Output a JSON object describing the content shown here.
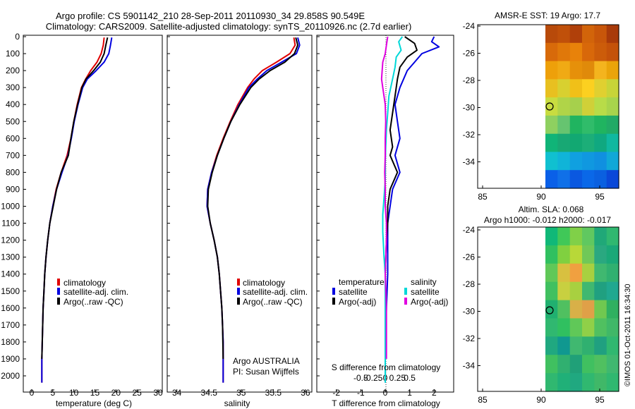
{
  "header": {
    "title_line1": "Argo profile: CS 5901142_210 28-Sep-2011 20110930_34 29.858S 90.549E",
    "title_line2": "Climatology: CARS2009. Satellite-adjusted climatology: synTS_20110926.nc (2.7d earlier)"
  },
  "colors": {
    "climatology": "#e00000",
    "satellite": "#0000e0",
    "argo": "#000000",
    "sat_sal": "#00e0e0",
    "argo_sal": "#e000e0"
  },
  "chart_data": [
    {
      "id": "temperature",
      "type": "line",
      "xlabel": "temperature (deg C)",
      "ylabel": "",
      "xlim": [
        -2,
        31
      ],
      "ylim": [
        2100,
        0
      ],
      "xticks": [
        0,
        5,
        10,
        15,
        20,
        25,
        30
      ],
      "yticks": [
        0,
        100,
        200,
        300,
        400,
        500,
        600,
        700,
        800,
        900,
        1000,
        1100,
        1200,
        1300,
        1400,
        1500,
        1600,
        1700,
        1800,
        1900,
        2000
      ],
      "legend": [
        "climatology",
        "satellite-adj. clim.",
        "Argo(..raw -QC)"
      ],
      "series": [
        {
          "name": "climatology",
          "color": "#e00000",
          "x": [
            17.2,
            17.0,
            16.5,
            15.5,
            14.0,
            12.8,
            11.8,
            10.8,
            10.0,
            9.3,
            8.4,
            7.0,
            5.8,
            5.0,
            4.3,
            3.8,
            3.4,
            3.1,
            2.9,
            2.7,
            2.6,
            2.5,
            2.4,
            2.4
          ],
          "y": [
            5,
            50,
            100,
            150,
            200,
            250,
            300,
            400,
            500,
            600,
            700,
            800,
            900,
            1000,
            1100,
            1200,
            1300,
            1400,
            1500,
            1600,
            1700,
            1800,
            1900,
            2040
          ]
        },
        {
          "name": "satellite-adj. clim.",
          "color": "#0000e0",
          "x": [
            19.0,
            18.7,
            18.3,
            17.2,
            15.3,
            13.2,
            12.1,
            11.0,
            10.1,
            9.4,
            8.6,
            7.2,
            5.9,
            5.0,
            4.3,
            3.8,
            3.4,
            3.1,
            2.9,
            2.7,
            2.6,
            2.5,
            2.4,
            2.4
          ],
          "y": [
            5,
            50,
            100,
            150,
            200,
            250,
            300,
            400,
            500,
            600,
            700,
            800,
            900,
            1000,
            1100,
            1200,
            1300,
            1400,
            1500,
            1600,
            1700,
            1800,
            1900,
            2040
          ]
        },
        {
          "name": "Argo(..raw -QC)",
          "color": "#000000",
          "x": [
            18.0,
            17.6,
            17.2,
            16.3,
            14.7,
            12.9,
            11.9,
            10.9,
            10.0,
            9.3,
            8.7,
            7.0,
            5.9,
            5.1,
            4.3,
            3.8,
            3.4,
            3.1,
            2.9,
            2.7,
            2.6,
            2.5,
            2.4
          ],
          "y": [
            5,
            50,
            100,
            150,
            200,
            250,
            300,
            400,
            500,
            600,
            700,
            800,
            900,
            1000,
            1100,
            1200,
            1300,
            1400,
            1500,
            1600,
            1700,
            1800,
            1900
          ]
        }
      ]
    },
    {
      "id": "salinity",
      "type": "line",
      "xlabel": "salinity",
      "xlim": [
        33.85,
        36.1
      ],
      "ylim": [
        2100,
        0
      ],
      "xticks": [
        34,
        34.5,
        35,
        35.5,
        36
      ],
      "legend": [
        "climatology",
        "satellite-adj. clim.",
        "Argo(..raw -QC)"
      ],
      "note_line1": "Argo AUSTRALIA",
      "note_line2": "PI: Susan Wijffels",
      "series": [
        {
          "name": "climatology",
          "color": "#e00000",
          "x": [
            35.82,
            35.84,
            35.76,
            35.55,
            35.33,
            35.2,
            35.1,
            34.95,
            34.83,
            34.72,
            34.62,
            34.54,
            34.48,
            34.47,
            34.52,
            34.58,
            34.63,
            34.66,
            34.68,
            34.7,
            34.71,
            34.72,
            34.72
          ],
          "y": [
            5,
            50,
            100,
            150,
            200,
            250,
            300,
            400,
            500,
            600,
            700,
            800,
            900,
            1000,
            1100,
            1200,
            1300,
            1400,
            1500,
            1600,
            1700,
            1800,
            2040
          ]
        },
        {
          "name": "satellite-adj. clim.",
          "color": "#0000e0",
          "x": [
            35.88,
            35.91,
            35.86,
            35.63,
            35.4,
            35.25,
            35.12,
            34.97,
            34.84,
            34.73,
            34.63,
            34.54,
            34.48,
            34.47,
            34.52,
            34.58,
            34.63,
            34.66,
            34.68,
            34.7,
            34.71,
            34.72,
            34.72
          ],
          "y": [
            5,
            50,
            100,
            150,
            200,
            250,
            300,
            400,
            500,
            600,
            700,
            800,
            900,
            1000,
            1100,
            1200,
            1300,
            1400,
            1500,
            1600,
            1700,
            1800,
            2040
          ]
        },
        {
          "name": "Argo(..raw -QC)",
          "color": "#000000",
          "x": [
            35.85,
            35.88,
            35.83,
            35.68,
            35.45,
            35.28,
            35.15,
            34.98,
            34.84,
            34.73,
            34.63,
            34.55,
            34.49,
            34.48,
            34.52,
            34.58,
            34.63,
            34.66,
            34.68,
            34.7,
            34.71,
            34.72
          ],
          "y": [
            5,
            50,
            100,
            150,
            200,
            250,
            300,
            400,
            500,
            600,
            700,
            800,
            900,
            1000,
            1100,
            1200,
            1300,
            1400,
            1500,
            1600,
            1700,
            1900
          ]
        }
      ]
    },
    {
      "id": "difference",
      "type": "line",
      "xlabel": "T difference from climatology",
      "xlabel_top": "S difference from climatology",
      "xlim": [
        -2.8,
        2.8
      ],
      "ylim": [
        2100,
        0
      ],
      "xticks": [
        -2,
        -1,
        0,
        1,
        2
      ],
      "xticks_top": [
        -0.5,
        -0.25,
        0,
        0.25,
        0.5
      ],
      "legend_temperature_title": "temperature",
      "legend_salinity_title": "salinity",
      "legend": [
        "satellite",
        "Argo(-adj)",
        "satellite",
        "Argo(-adj)"
      ],
      "series": [
        {
          "name": "T satellite",
          "color": "#0000e0",
          "x": [
            2.0,
            1.9,
            2.2,
            1.5,
            1.2,
            0.9,
            0.6,
            0.4,
            0.5,
            0.6,
            0.4,
            0.6,
            0.3,
            0.2,
            0.1,
            0.1,
            0.1,
            0.05,
            0.0,
            0.0,
            0.0,
            0.0
          ],
          "y": [
            0,
            30,
            60,
            100,
            150,
            200,
            300,
            400,
            500,
            600,
            700,
            800,
            900,
            1000,
            1100,
            1200,
            1400,
            1600,
            1800,
            1900,
            2000,
            2040
          ]
        },
        {
          "name": "T Argo(-adj)",
          "color": "#000000",
          "x": [
            0.8,
            1.2,
            1.3,
            0.9,
            0.6,
            0.5,
            0.4,
            0.3,
            0.2,
            0.3,
            0.2,
            0.5,
            0.2,
            0.1,
            0.1,
            0.05,
            0.0,
            0.0,
            0.0,
            0.0
          ],
          "y": [
            0,
            40,
            80,
            120,
            180,
            250,
            350,
            450,
            550,
            650,
            700,
            800,
            900,
            1000,
            1100,
            1200,
            1400,
            1600,
            1800,
            1900
          ]
        },
        {
          "name": "S satellite",
          "color": "#00d8d8",
          "x": [
            0.7,
            0.55,
            0.65,
            0.45,
            0.4,
            0.3,
            0.15,
            0.1,
            0.05,
            0.02,
            0.0,
            0.0,
            -0.05,
            -0.1,
            -0.1,
            -0.05,
            0.0,
            0.0,
            0.0,
            0.0,
            0.0
          ],
          "y": [
            0,
            30,
            80,
            120,
            180,
            250,
            350,
            450,
            550,
            650,
            750,
            850,
            950,
            1050,
            1150,
            1300,
            1400,
            1600,
            1800,
            1900,
            2040
          ]
        },
        {
          "name": "S Argo(-adj)",
          "color": "#e000e0",
          "x": [
            0.1,
            0.05,
            0.0,
            -0.1,
            -0.15,
            -0.1,
            0.0,
            0.02,
            0.0,
            0.0,
            -0.02,
            0.0,
            0.0,
            0.05,
            0.05,
            0.0,
            0.05,
            0.05,
            0.05
          ],
          "y": [
            0,
            50,
            100,
            150,
            250,
            300,
            400,
            500,
            600,
            700,
            800,
            900,
            1000,
            1100,
            1200,
            1400,
            1600,
            1800,
            1900
          ]
        }
      ]
    }
  ],
  "maps": {
    "sst": {
      "title": "AMSR-E SST: 19 Argo: 17.7",
      "xticks": [
        "85",
        "90",
        "95"
      ],
      "yticks": [
        "-24",
        "-26",
        "-28",
        "-30",
        "-32",
        "-34"
      ],
      "field": [
        [
          "#b84a0a",
          "#c0500a",
          "#b0400a",
          "#d2640a",
          "#c8560a",
          "#a83a0a"
        ],
        [
          "#d86a0a",
          "#e0780a",
          "#e8820a",
          "#d8680a",
          "#cc5c0a",
          "#c4520a"
        ],
        [
          "#eea00a",
          "#f0aa14",
          "#e6900a",
          "#e08a0a",
          "#f4b41e",
          "#eaa40a"
        ],
        [
          "#e8c020",
          "#d8d030",
          "#f0c018",
          "#fcd020",
          "#e0d030",
          "#c8d438"
        ],
        [
          "#c8dc40",
          "#b0d448",
          "#a6d04c",
          "#d0d038",
          "#b8dc48",
          "#a8d44c"
        ],
        [
          "#8ed060",
          "#66c470",
          "#20b460",
          "#30bc6a",
          "#20b460",
          "#22aa66"
        ],
        [
          "#10b478",
          "#18a874",
          "#12a872",
          "#1cae78",
          "#10a880",
          "#10b8a0"
        ],
        [
          "#10c0d0",
          "#10b4d8",
          "#10a0e0",
          "#1098e0",
          "#1090e0",
          "#10a8d8"
        ],
        [
          "#0a60e8",
          "#1070e8",
          "#0a58e0",
          "#0a68e8",
          "#0a60e0",
          "#0a48d8"
        ]
      ]
    },
    "sla": {
      "title_line1": "Altim. SLA: 0.068",
      "title_line2": "Argo h1000: -0.012 h2000: -0.017",
      "xticks": [
        "85",
        "90",
        "95"
      ],
      "yticks": [
        "-24",
        "-26",
        "-28",
        "-30",
        "-32",
        "-34"
      ],
      "field": [
        [
          "#10b878",
          "#40c858",
          "#80d048",
          "#60c860",
          "#20a878",
          "#30b870"
        ],
        [
          "#30c060",
          "#80d040",
          "#b8d838",
          "#70c858",
          "#2aa880",
          "#1aa878"
        ],
        [
          "#60c858",
          "#d8c040",
          "#f0a040",
          "#a8d040",
          "#40b870",
          "#30b070"
        ],
        [
          "#40c060",
          "#c8d040",
          "#a8d040",
          "#40b870",
          "#20a080",
          "#20a890"
        ],
        [
          "#20b070",
          "#50c060",
          "#d8b048",
          "#e0a048",
          "#70c850",
          "#30b060"
        ],
        [
          "#30b870",
          "#30c060",
          "#60c858",
          "#90d048",
          "#50c060",
          "#40b868"
        ],
        [
          "#20a880",
          "#109890",
          "#40b870",
          "#30b070",
          "#20a080",
          "#30b870"
        ],
        [
          "#40c060",
          "#30b070",
          "#20a078",
          "#40c060",
          "#50c060",
          "#40b870"
        ],
        [
          "#30b870",
          "#20b078",
          "#20a880",
          "#30b870",
          "#40b868",
          "#30b870"
        ]
      ]
    }
  },
  "side_label": "©IMOS 01-Oct-2011 16:34:30"
}
